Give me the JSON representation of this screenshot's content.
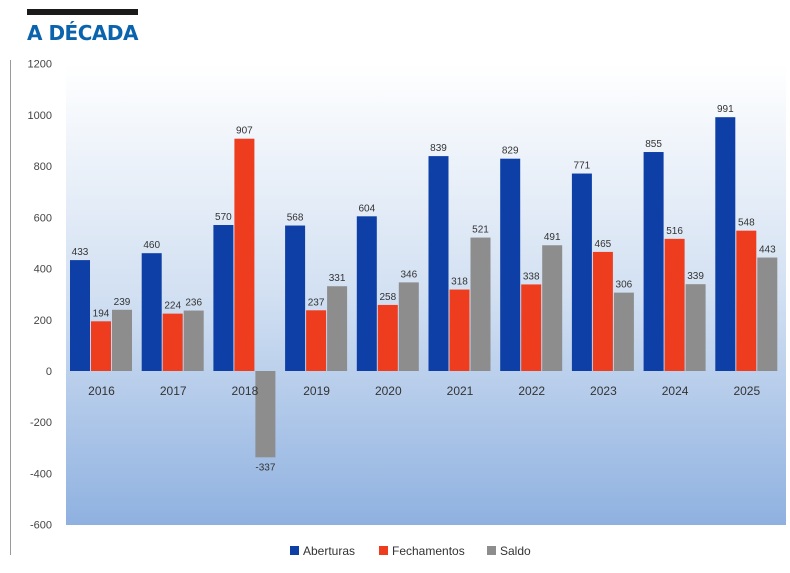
{
  "header": {
    "title": "A DÉCADA"
  },
  "chart_data": {
    "type": "bar",
    "title": "A DÉCADA",
    "categories": [
      "2016",
      "2017",
      "2018",
      "2019",
      "2020",
      "2021",
      "2022",
      "2023",
      "2024",
      "2025"
    ],
    "series": [
      {
        "name": "Aberturas",
        "color": "#0d3fa6",
        "values": [
          433,
          460,
          570,
          568,
          604,
          839,
          829,
          771,
          855,
          991
        ]
      },
      {
        "name": "Fechamentos",
        "color": "#ee3d1e",
        "values": [
          194,
          224,
          907,
          237,
          258,
          318,
          338,
          465,
          516,
          548
        ]
      },
      {
        "name": "Saldo",
        "color": "#8d8d8d",
        "values": [
          239,
          236,
          -337,
          331,
          346,
          521,
          491,
          306,
          339,
          443
        ]
      }
    ],
    "yticks": [
      1200,
      1000,
      800,
      600,
      400,
      200,
      0,
      -200,
      -400,
      -600
    ],
    "ylim": [
      -600,
      1200
    ],
    "xlabel": "",
    "ylabel": "",
    "grid": false,
    "legend_position": "bottom-center"
  }
}
